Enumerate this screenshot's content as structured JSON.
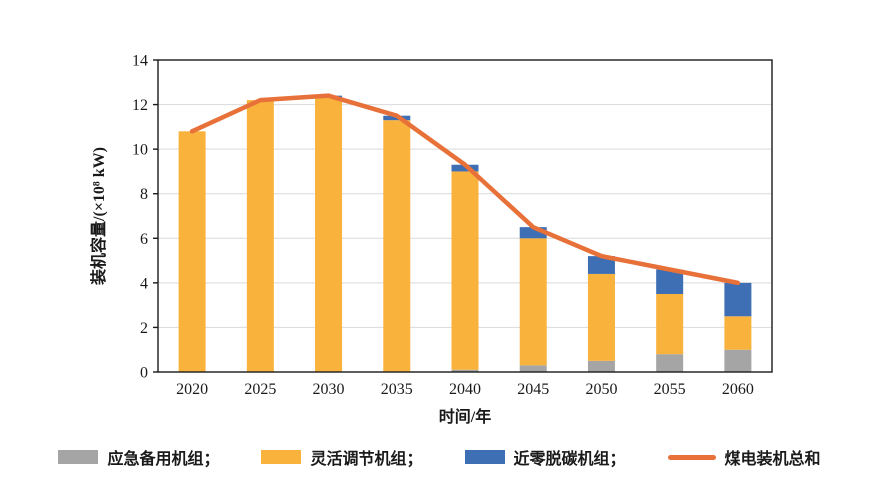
{
  "figure": {
    "background": "#FFFFFF"
  },
  "chart_data": {
    "type": "bar",
    "subtype": "stacked-bars-with-line-overlay",
    "title": "",
    "categories": [
      "2020",
      "2025",
      "2030",
      "2035",
      "2040",
      "2045",
      "2050",
      "2055",
      "2060"
    ],
    "series": [
      {
        "name": "应急备用机组",
        "role": "bar",
        "color": "#A5A5A5",
        "values": [
          0,
          0,
          0,
          0,
          0.1,
          0.3,
          0.5,
          0.8,
          1.0
        ]
      },
      {
        "name": "灵活调节机组",
        "role": "bar",
        "color": "#F9B23C",
        "values": [
          10.8,
          12.2,
          12.3,
          11.3,
          8.9,
          5.7,
          3.9,
          2.7,
          1.5
        ]
      },
      {
        "name": "近零脱碳机组",
        "role": "bar",
        "color": "#3E6FB5",
        "values": [
          0,
          0,
          0.1,
          0.2,
          0.3,
          0.5,
          0.8,
          1.1,
          1.5
        ]
      },
      {
        "name": "煤电装机总和",
        "role": "line",
        "color": "#E8713A",
        "values": [
          10.8,
          12.2,
          12.4,
          11.5,
          9.3,
          6.5,
          5.2,
          4.6,
          4.0
        ]
      }
    ],
    "xlabel": "时间/年",
    "ylabel": "装机容量/(×10⁸ kW)",
    "ylim": [
      0,
      14
    ],
    "ytick_step": 2,
    "yticks": [
      0,
      2,
      4,
      6,
      8,
      10,
      12,
      14
    ],
    "grid": true,
    "gridline_color": "#D9D9D9",
    "axis_color": "#1A1A1A",
    "legend_position": "bottom"
  },
  "legend": {
    "items": [
      {
        "label": "应急备用机组；",
        "series": 0,
        "swatch": "bar"
      },
      {
        "label": "灵活调节机组；",
        "series": 1,
        "swatch": "bar"
      },
      {
        "label": "近零脱碳机组；",
        "series": 2,
        "swatch": "bar"
      },
      {
        "label": "煤电装机总和",
        "series": 3,
        "swatch": "line"
      }
    ]
  }
}
